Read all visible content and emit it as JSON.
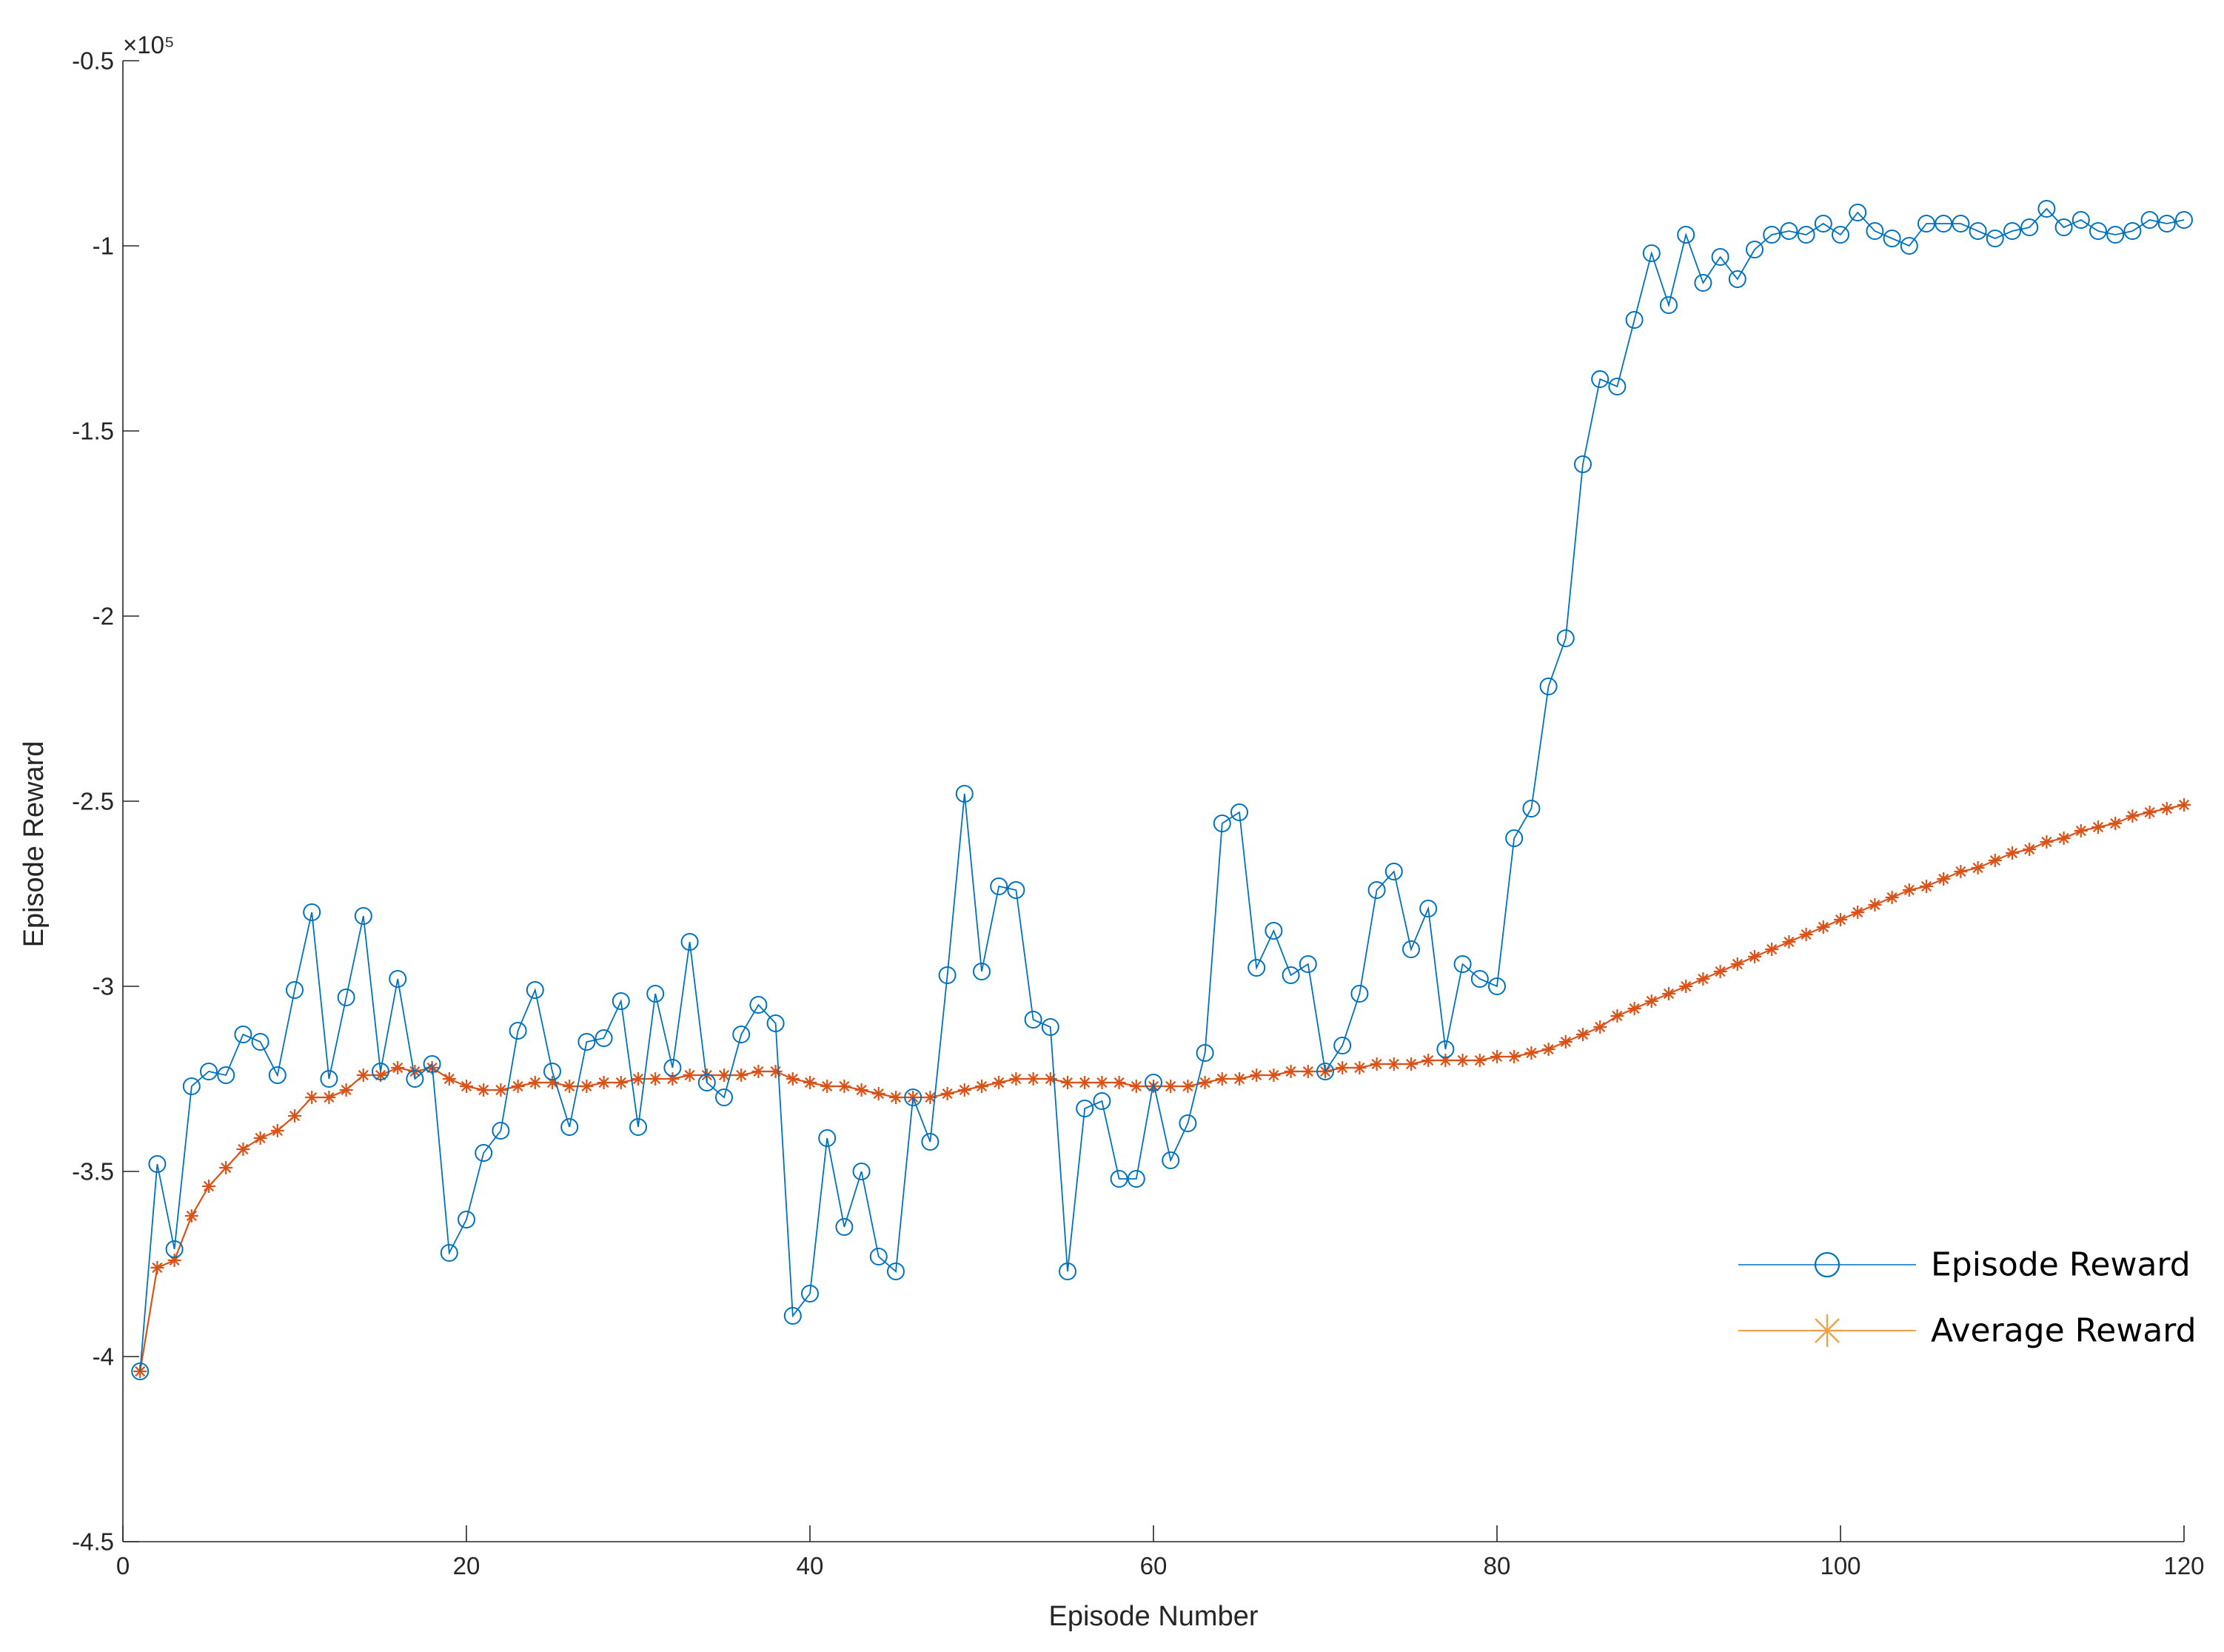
{
  "chart_data": {
    "type": "line",
    "xlabel": "Episode Number",
    "ylabel": "Episode Reward",
    "xlim": [
      0,
      120
    ],
    "ylim": [
      -4.5,
      -0.5
    ],
    "y_exponent_label": "×10⁵",
    "y_multiplier": 100000,
    "grid": false,
    "legend_position": "bottom-right",
    "x_ticks": [
      0,
      20,
      40,
      60,
      80,
      100,
      120
    ],
    "x_tick_labels": [
      "0",
      "20",
      "40",
      "60",
      "80",
      "100",
      "120"
    ],
    "y_ticks": [
      -4.5,
      -4,
      -3.5,
      -3,
      -2.5,
      -2,
      -1.5,
      -1,
      -0.5
    ],
    "y_tick_labels": [
      "-4.5",
      "-4",
      "-3.5",
      "-3",
      "-2.5",
      "-2",
      "-1.5",
      "-1",
      "-0.5"
    ],
    "x": [
      1,
      2,
      3,
      4,
      5,
      6,
      7,
      8,
      9,
      10,
      11,
      12,
      13,
      14,
      15,
      16,
      17,
      18,
      19,
      20,
      21,
      22,
      23,
      24,
      25,
      26,
      27,
      28,
      29,
      30,
      31,
      32,
      33,
      34,
      35,
      36,
      37,
      38,
      39,
      40,
      41,
      42,
      43,
      44,
      45,
      46,
      47,
      48,
      49,
      50,
      51,
      52,
      53,
      54,
      55,
      56,
      57,
      58,
      59,
      60,
      61,
      62,
      63,
      64,
      65,
      66,
      67,
      68,
      69,
      70,
      71,
      72,
      73,
      74,
      75,
      76,
      77,
      78,
      79,
      80,
      81,
      82,
      83,
      84,
      85,
      86,
      87,
      88,
      89,
      90,
      91,
      92,
      93,
      94,
      95,
      96,
      97,
      98,
      99,
      100,
      101,
      102,
      103,
      104,
      105,
      106,
      107,
      108,
      109,
      110,
      111,
      112,
      113,
      114,
      115,
      116,
      117,
      118,
      119,
      120
    ],
    "series": [
      {
        "name": "Episode Reward",
        "color": "#0072BD",
        "marker": "circle",
        "values": [
          -4.04,
          -3.48,
          -3.71,
          -3.27,
          -3.23,
          -3.24,
          -3.13,
          -3.15,
          -3.24,
          -3.01,
          -2.8,
          -3.25,
          -3.03,
          -2.81,
          -3.23,
          -2.98,
          -3.25,
          -3.21,
          -3.72,
          -3.63,
          -3.45,
          -3.39,
          -3.12,
          -3.01,
          -3.23,
          -3.38,
          -3.15,
          -3.14,
          -3.04,
          -3.38,
          -3.02,
          -3.22,
          -2.88,
          -3.26,
          -3.3,
          -3.13,
          -3.05,
          -3.1,
          -3.89,
          -3.83,
          -3.41,
          -3.65,
          -3.5,
          -3.73,
          -3.77,
          -3.3,
          -3.42,
          -2.97,
          -2.48,
          -2.96,
          -2.73,
          -2.74,
          -3.09,
          -3.11,
          -3.77,
          -3.33,
          -3.31,
          -3.52,
          -3.52,
          -3.26,
          -3.47,
          -3.37,
          -3.18,
          -2.56,
          -2.53,
          -2.95,
          -2.85,
          -2.97,
          -2.94,
          -3.23,
          -3.16,
          -3.02,
          -2.74,
          -2.69,
          -2.9,
          -2.79,
          -3.17,
          -2.94,
          -2.98,
          -3.0,
          -2.6,
          -2.52,
          -2.19,
          -2.06,
          -1.59,
          -1.36,
          -1.38,
          -1.2,
          -1.02,
          -1.16,
          -0.97,
          -1.1,
          -1.03,
          -1.09,
          -1.01,
          -0.97,
          -0.96,
          -0.97,
          -0.94,
          -0.97,
          -0.91,
          -0.96,
          -0.98,
          -1.0,
          -0.94,
          -0.94,
          -0.94,
          -0.96,
          -0.98,
          -0.96,
          -0.95,
          -0.9,
          -0.95,
          -0.93,
          -0.96,
          -0.97,
          -0.96,
          -0.93,
          -0.94,
          -0.93
        ]
      },
      {
        "name": "Average Reward",
        "color": "#D95319",
        "marker": "star",
        "values": [
          -4.04,
          -3.76,
          -3.74,
          -3.62,
          -3.54,
          -3.49,
          -3.44,
          -3.41,
          -3.39,
          -3.35,
          -3.3,
          -3.3,
          -3.28,
          -3.24,
          -3.24,
          -3.22,
          -3.23,
          -3.22,
          -3.25,
          -3.27,
          -3.28,
          -3.28,
          -3.27,
          -3.26,
          -3.26,
          -3.27,
          -3.27,
          -3.26,
          -3.26,
          -3.25,
          -3.25,
          -3.25,
          -3.24,
          -3.24,
          -3.24,
          -3.24,
          -3.23,
          -3.23,
          -3.25,
          -3.26,
          -3.27,
          -3.27,
          -3.28,
          -3.29,
          -3.3,
          -3.3,
          -3.3,
          -3.29,
          -3.28,
          -3.27,
          -3.26,
          -3.25,
          -3.25,
          -3.25,
          -3.26,
          -3.26,
          -3.26,
          -3.26,
          -3.27,
          -3.27,
          -3.27,
          -3.27,
          -3.26,
          -3.25,
          -3.25,
          -3.24,
          -3.24,
          -3.23,
          -3.23,
          -3.23,
          -3.22,
          -3.22,
          -3.21,
          -3.21,
          -3.21,
          -3.2,
          -3.2,
          -3.2,
          -3.2,
          -3.19,
          -3.19,
          -3.18,
          -3.17,
          -3.15,
          -3.13,
          -3.11,
          -3.08,
          -3.06,
          -3.04,
          -3.02,
          -3.0,
          -2.98,
          -2.96,
          -2.94,
          -2.92,
          -2.9,
          -2.88,
          -2.86,
          -2.84,
          -2.82,
          -2.8,
          -2.78,
          -2.76,
          -2.74,
          -2.73,
          -2.71,
          -2.69,
          -2.68,
          -2.66,
          -2.64,
          -2.63,
          -2.61,
          -2.6,
          -2.58,
          -2.57,
          -2.56,
          -2.54,
          -2.53,
          -2.52,
          -2.51
        ]
      }
    ]
  }
}
